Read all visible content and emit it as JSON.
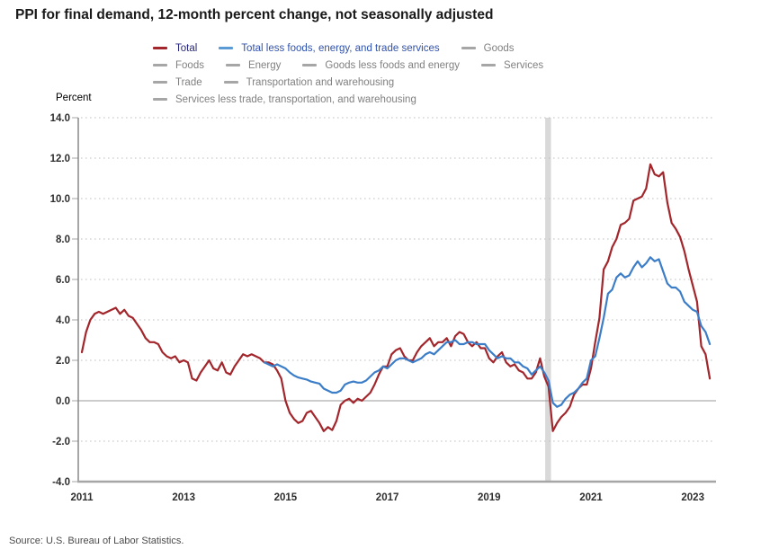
{
  "header": {
    "title": "PPI for final demand, 12-month percent change, not seasonally adjusted"
  },
  "axis": {
    "unit_label": "Percent"
  },
  "footer": {
    "source": "Source: U.S. Bureau of Labor Statistics."
  },
  "colors": {
    "total_line": "#A2262B",
    "core_line": "#3C7DC8",
    "inactive_gray": "#808080",
    "swatch_gray": "#A6A6A6",
    "recession_band": "#D9D9D9",
    "gridline": "#BFBFBF",
    "zero_line": "#999999",
    "bottom_axis": "#A6A6A6",
    "left_axis": "#808080"
  },
  "legend": {
    "items": [
      {
        "label": "Total",
        "swatch": "#A2262B",
        "label_color": "#28287E"
      },
      {
        "label": "Total less foods, energy, and trade services",
        "swatch": "#5B9BD5",
        "label_color": "#2E51B0"
      },
      {
        "label": "Goods",
        "swatch": "#A6A6A6",
        "label_color": "#808080"
      },
      {
        "label": "Foods",
        "swatch": "#A6A6A6",
        "label_color": "#808080"
      },
      {
        "label": "Energy",
        "swatch": "#A6A6A6",
        "label_color": "#808080"
      },
      {
        "label": "Goods less foods and energy",
        "swatch": "#A6A6A6",
        "label_color": "#808080"
      },
      {
        "label": "Services",
        "swatch": "#A6A6A6",
        "label_color": "#808080"
      },
      {
        "label": "Trade",
        "swatch": "#A6A6A6",
        "label_color": "#808080"
      },
      {
        "label": "Transportation and warehousing",
        "swatch": "#A6A6A6",
        "label_color": "#808080"
      },
      {
        "label": "Services less trade, transportation, and warehousing",
        "swatch": "#A6A6A6",
        "label_color": "#808080"
      }
    ]
  },
  "chart_data": {
    "type": "line",
    "title": "PPI for final demand, 12-month percent change, not seasonally adjusted",
    "ylabel": "Percent",
    "xlabel": "",
    "ylim": [
      -4,
      14
    ],
    "y_ticks": [
      "14.0",
      "12.0",
      "10.0",
      "8.0",
      "6.0",
      "4.0",
      "2.0",
      "0.0",
      "-2.0",
      "-4.0"
    ],
    "x_ticks": [
      "2011",
      "2013",
      "2015",
      "2017",
      "2019",
      "2021",
      "2023"
    ],
    "x_range_start": "2011-01",
    "x_range_end": "2023-05",
    "grid": "dotted horizontal gridlines, solid zero line",
    "legend_position": "top",
    "frequency": "monthly",
    "recession_band": {
      "start": "2020-02",
      "end": "2020-04",
      "color": "#D9D9D9"
    },
    "series": [
      {
        "name": "Total",
        "color": "#A2262B",
        "start": "2011-01",
        "values": [
          2.4,
          3.4,
          4.0,
          4.3,
          4.4,
          4.3,
          4.4,
          4.5,
          4.6,
          4.3,
          4.5,
          4.2,
          4.1,
          3.8,
          3.5,
          3.1,
          2.9,
          2.9,
          2.8,
          2.4,
          2.2,
          2.1,
          2.2,
          1.9,
          2.0,
          1.9,
          1.1,
          1.0,
          1.4,
          1.7,
          2.0,
          1.6,
          1.5,
          1.9,
          1.4,
          1.3,
          1.7,
          2.0,
          2.3,
          2.2,
          2.3,
          2.2,
          2.1,
          1.9,
          1.9,
          1.8,
          1.5,
          1.1,
          0.0,
          -0.6,
          -0.9,
          -1.1,
          -1.0,
          -0.6,
          -0.5,
          -0.8,
          -1.1,
          -1.5,
          -1.3,
          -1.45,
          -1.0,
          -0.2,
          0.0,
          0.1,
          -0.1,
          0.1,
          0.0,
          0.2,
          0.4,
          0.8,
          1.3,
          1.7,
          1.7,
          2.3,
          2.5,
          2.6,
          2.2,
          2.0,
          2.0,
          2.4,
          2.7,
          2.9,
          3.1,
          2.7,
          2.9,
          2.9,
          3.1,
          2.7,
          3.2,
          3.4,
          3.3,
          2.9,
          2.7,
          2.9,
          2.6,
          2.6,
          2.1,
          1.9,
          2.2,
          2.4,
          1.9,
          1.7,
          1.8,
          1.5,
          1.4,
          1.1,
          1.1,
          1.4,
          2.1,
          1.2,
          0.7,
          -1.5,
          -1.1,
          -0.8,
          -0.6,
          -0.3,
          0.3,
          0.6,
          0.8,
          0.8,
          1.6,
          2.9,
          4.1,
          6.5,
          6.9,
          7.6,
          8.0,
          8.7,
          8.8,
          9.0,
          9.9,
          10.0,
          10.1,
          10.5,
          11.7,
          11.2,
          11.1,
          11.3,
          9.8,
          8.8,
          8.5,
          8.1,
          7.4,
          6.5,
          5.7,
          4.9,
          2.7,
          2.3,
          1.1
        ]
      },
      {
        "name": "Total less foods, energy, and trade services",
        "color": "#3C7DC8",
        "start": "2014-08",
        "values": [
          1.9,
          1.8,
          1.7,
          1.8,
          1.7,
          1.6,
          1.4,
          1.25,
          1.15,
          1.1,
          1.05,
          0.95,
          0.9,
          0.85,
          0.6,
          0.5,
          0.4,
          0.4,
          0.5,
          0.8,
          0.9,
          0.95,
          0.9,
          0.9,
          1.0,
          1.2,
          1.4,
          1.5,
          1.7,
          1.6,
          1.8,
          2.0,
          2.1,
          2.1,
          2.0,
          1.9,
          2.0,
          2.1,
          2.3,
          2.4,
          2.3,
          2.5,
          2.7,
          2.9,
          2.9,
          3.0,
          2.8,
          2.8,
          2.9,
          2.9,
          2.8,
          2.8,
          2.8,
          2.5,
          2.3,
          2.1,
          2.2,
          2.1,
          2.1,
          1.9,
          1.9,
          1.7,
          1.6,
          1.3,
          1.5,
          1.7,
          1.4,
          1.0,
          -0.1,
          -0.3,
          -0.2,
          0.1,
          0.3,
          0.4,
          0.6,
          0.9,
          1.1,
          2.0,
          2.2,
          3.1,
          4.1,
          5.3,
          5.5,
          6.1,
          6.3,
          6.1,
          6.2,
          6.6,
          6.9,
          6.6,
          6.8,
          7.1,
          6.9,
          7.0,
          6.4,
          5.8,
          5.6,
          5.6,
          5.4,
          4.9,
          4.7,
          4.5,
          4.4,
          3.7,
          3.4,
          2.8
        ]
      }
    ],
    "legend_only_series": [
      "Goods",
      "Foods",
      "Energy",
      "Goods less foods and energy",
      "Services",
      "Trade",
      "Transportation and warehousing",
      "Services less trade, transportation, and warehousing"
    ]
  }
}
